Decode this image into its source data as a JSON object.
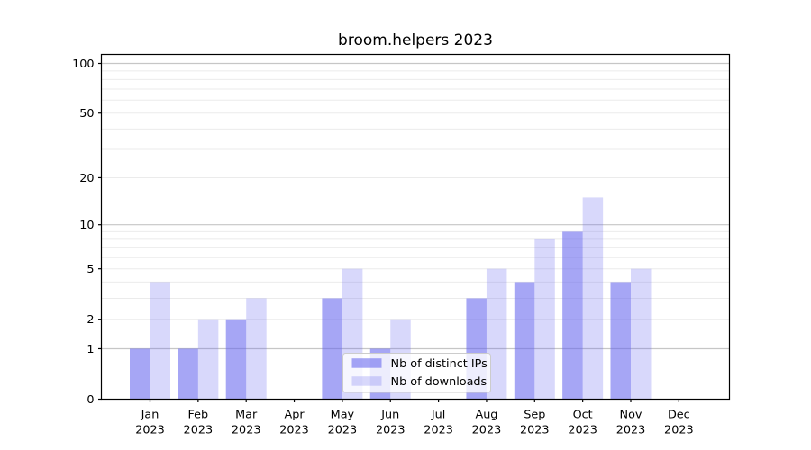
{
  "title": "broom.helpers 2023",
  "chart_data": {
    "type": "bar",
    "title": "broom.helpers 2023",
    "yscale": "log1p",
    "ylim": [
      0,
      115
    ],
    "grid": "on",
    "legend_position": "inside lower-center",
    "categories": [
      "Jan 2023",
      "Feb 2023",
      "Mar 2023",
      "Apr 2023",
      "May 2023",
      "Jun 2023",
      "Jul 2023",
      "Aug 2023",
      "Sep 2023",
      "Oct 2023",
      "Nov 2023",
      "Dec 2023"
    ],
    "x_ticks": [
      {
        "line1": "Jan",
        "line2": "2023"
      },
      {
        "line1": "Feb",
        "line2": "2023"
      },
      {
        "line1": "Mar",
        "line2": "2023"
      },
      {
        "line1": "Apr",
        "line2": "2023"
      },
      {
        "line1": "May",
        "line2": "2023"
      },
      {
        "line1": "Jun",
        "line2": "2023"
      },
      {
        "line1": "Jul",
        "line2": "2023"
      },
      {
        "line1": "Aug",
        "line2": "2023"
      },
      {
        "line1": "Sep",
        "line2": "2023"
      },
      {
        "line1": "Oct",
        "line2": "2023"
      },
      {
        "line1": "Nov",
        "line2": "2023"
      },
      {
        "line1": "Dec",
        "line2": "2023"
      }
    ],
    "y_ticks": [
      0,
      1,
      2,
      5,
      10,
      20,
      50,
      100
    ],
    "y_major_gridlines": [
      1,
      10,
      100
    ],
    "y_minor_gridlines": [
      2,
      3,
      4,
      5,
      6,
      7,
      8,
      9,
      20,
      30,
      40,
      50,
      60,
      70,
      80,
      90
    ],
    "series": [
      {
        "name": "Nb of distinct IPs",
        "color": "rgba(101,101,238,0.58)",
        "values": [
          1,
          1,
          2,
          0,
          3,
          1,
          0,
          3,
          4,
          9,
          4,
          0
        ]
      },
      {
        "name": "Nb of downloads",
        "color": "rgba(101,101,238,0.25)",
        "values": [
          4,
          2,
          3,
          0,
          5,
          2,
          0,
          5,
          8,
          15,
          5,
          0
        ]
      }
    ]
  },
  "colors": {
    "background": "#ffffff",
    "spine": "#000000",
    "major_grid": "#c6c6c6",
    "minor_grid": "#ebebeb",
    "text": "#000000",
    "legend_bg": "rgba(255,255,255,0.8)",
    "legend_border": "#cccccc"
  }
}
